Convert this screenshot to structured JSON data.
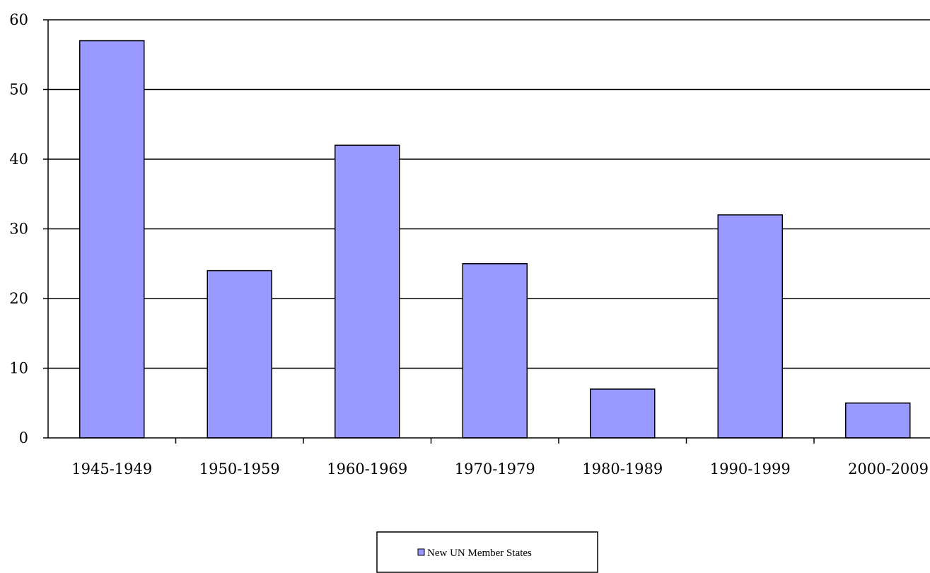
{
  "chart_data": {
    "type": "bar",
    "categories": [
      "1945-1949",
      "1950-1959",
      "1960-1969",
      "1970-1979",
      "1980-1989",
      "1990-1999",
      "2000-2009"
    ],
    "series": [
      {
        "name": "New UN Member States",
        "values": [
          57,
          24,
          42,
          25,
          7,
          32,
          5
        ],
        "color": "#9999ff"
      }
    ],
    "title": "",
    "xlabel": "",
    "ylabel": "",
    "ylim": [
      0,
      60
    ],
    "yticks": [
      "0",
      "10",
      "20",
      "30",
      "40",
      "50",
      "60"
    ],
    "grid": true,
    "legend_position": "bottom-center",
    "colors": {
      "bar_fill": "#9999ff",
      "bar_stroke": "#000000",
      "grid": "#000000",
      "axis": "#000000"
    }
  }
}
